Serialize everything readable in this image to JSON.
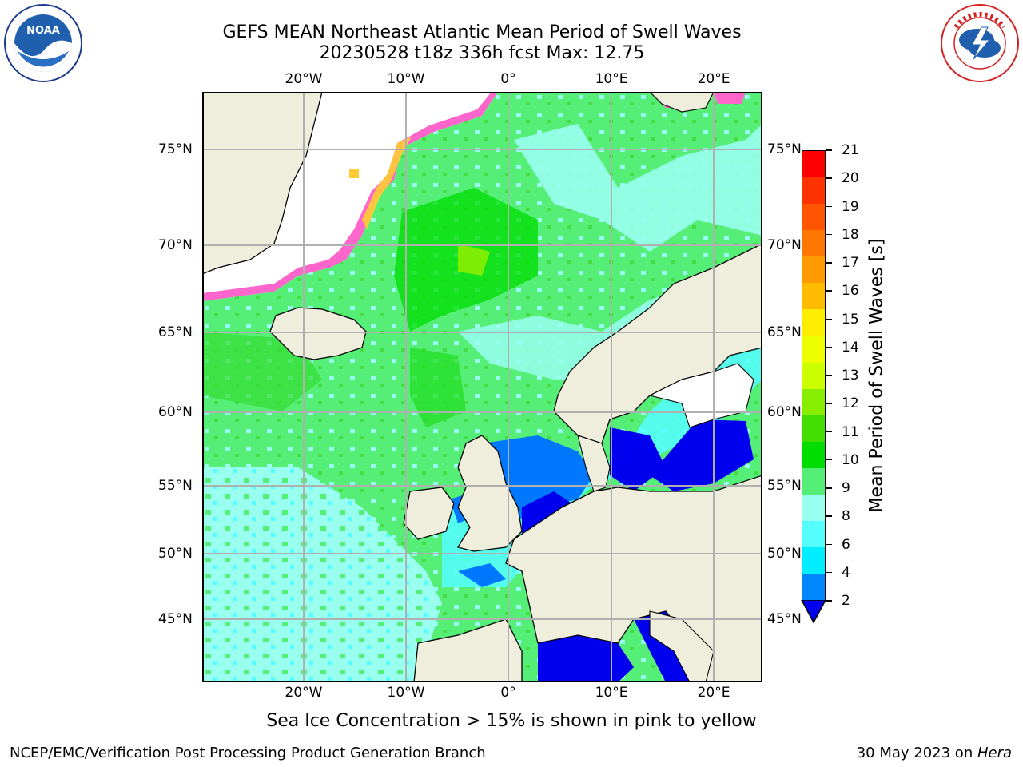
{
  "header": {
    "title_line1": "GEFS MEAN Northeast Atlantic Mean Period of Swell Waves",
    "title_line2": "20230528 t18z 336h fcst   Max: 12.75"
  },
  "logos": {
    "left_text": "NOAA",
    "left_ring_text": "NATIONAL OCEANIC AND ATMOSPHERIC ADMINISTRATION · U.S. DEPARTMENT OF COMMERCE",
    "right_ring_text": "NATIONAL WEATHER SERVICE"
  },
  "map": {
    "lon_labels": [
      "20°W",
      "10°W",
      "0°",
      "10°E",
      "20°E"
    ],
    "lat_labels": [
      "75°N",
      "70°N",
      "65°N",
      "60°N",
      "55°N",
      "50°N",
      "45°N"
    ]
  },
  "colorbar": {
    "label": "Mean Period of Swell Waves [s]",
    "ticks": [
      "21",
      "20",
      "19",
      "18",
      "17",
      "16",
      "15",
      "14",
      "13",
      "12",
      "11",
      "10",
      "9",
      "8",
      "6",
      "4",
      "2"
    ],
    "colors": [
      "#ff0000",
      "#ff3300",
      "#ff5500",
      "#ff7700",
      "#ff9900",
      "#ffbb00",
      "#ffee00",
      "#eeff00",
      "#ccff00",
      "#88ee00",
      "#44dd00",
      "#00dd00",
      "#55ee77",
      "#99ffee",
      "#55ffff",
      "#00eeff",
      "#0088ff"
    ],
    "extend_color": "#0000ee"
  },
  "caption": "Sea Ice Concentration > 15% is shown in pink to yellow",
  "footer": {
    "left": "NCEP/EMC/Verification Post Processing Product Generation Branch",
    "right_prefix": "30 May 2023 on ",
    "right_machine": "Hera"
  }
}
